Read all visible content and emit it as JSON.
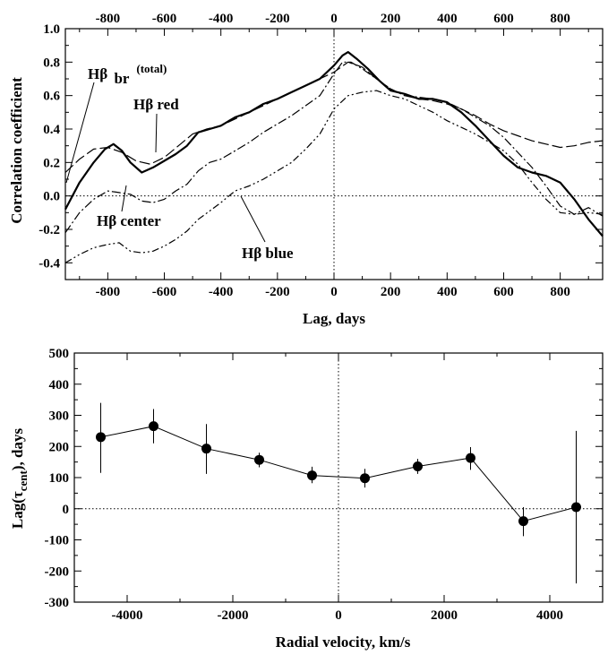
{
  "chart_data": [
    {
      "type": "line",
      "xlabel": "Lag, days",
      "ylabel": "Correlation coefficient",
      "xlim": [
        -950,
        950
      ],
      "ylim": [
        -0.5,
        1.0
      ],
      "xticks": [
        -800,
        -600,
        -400,
        -200,
        0,
        200,
        400,
        600,
        800
      ],
      "yticks": [
        -0.4,
        -0.2,
        0.0,
        0.2,
        0.4,
        0.6,
        0.8,
        1.0
      ],
      "xtick_labels": [
        "-800",
        "-600",
        "-400",
        "-200",
        "0",
        "200",
        "400",
        "600",
        "800"
      ],
      "ytick_labels": [
        "-0.4",
        "-0.2",
        "0.0",
        "0.2",
        "0.4",
        "0.6",
        "0.8",
        "1.0"
      ],
      "top_axis_ticks": true,
      "reference_lines": [
        "y=0",
        "x=0"
      ],
      "annotations": [
        {
          "text": "Hβ",
          "sub": "br",
          "sup": "(total)"
        },
        {
          "text": "Hβ red"
        },
        {
          "text": "Hβ center"
        },
        {
          "text": "Hβ blue"
        }
      ],
      "series": [
        {
          "name": "Hβ br (total)",
          "style": "solid-thick",
          "x": [
            -950,
            -900,
            -850,
            -810,
            -780,
            -750,
            -720,
            -680,
            -640,
            -600,
            -560,
            -520,
            -480,
            -440,
            -400,
            -350,
            -300,
            -250,
            -200,
            -150,
            -100,
            -50,
            0,
            30,
            50,
            80,
            120,
            160,
            200,
            250,
            300,
            350,
            400,
            450,
            500,
            550,
            600,
            650,
            700,
            750,
            800,
            850,
            900,
            950
          ],
          "y": [
            -0.08,
            0.08,
            0.2,
            0.28,
            0.31,
            0.27,
            0.2,
            0.14,
            0.17,
            0.21,
            0.25,
            0.3,
            0.38,
            0.4,
            0.42,
            0.47,
            0.5,
            0.55,
            0.58,
            0.62,
            0.66,
            0.7,
            0.78,
            0.84,
            0.86,
            0.82,
            0.76,
            0.69,
            0.63,
            0.61,
            0.58,
            0.58,
            0.56,
            0.5,
            0.42,
            0.33,
            0.24,
            0.17,
            0.14,
            0.12,
            0.08,
            -0.02,
            -0.14,
            -0.24
          ]
        },
        {
          "name": "Hβ red",
          "style": "long-dash",
          "x": [
            -950,
            -900,
            -850,
            -800,
            -750,
            -700,
            -650,
            -600,
            -550,
            -500,
            -450,
            -400,
            -350,
            -300,
            -250,
            -200,
            -150,
            -100,
            -50,
            0,
            50,
            100,
            150,
            200,
            250,
            300,
            350,
            400,
            450,
            500,
            550,
            600,
            650,
            700,
            750,
            800,
            850,
            900,
            950
          ],
          "y": [
            0.14,
            0.22,
            0.28,
            0.29,
            0.26,
            0.21,
            0.19,
            0.23,
            0.3,
            0.37,
            0.4,
            0.42,
            0.46,
            0.5,
            0.54,
            0.58,
            0.62,
            0.66,
            0.7,
            0.74,
            0.8,
            0.77,
            0.7,
            0.64,
            0.6,
            0.58,
            0.57,
            0.55,
            0.52,
            0.48,
            0.43,
            0.39,
            0.36,
            0.33,
            0.31,
            0.29,
            0.3,
            0.32,
            0.33
          ]
        },
        {
          "name": "Hβ center",
          "style": "dash-dot",
          "x": [
            -950,
            -900,
            -850,
            -800,
            -760,
            -720,
            -680,
            -640,
            -600,
            -560,
            -520,
            -480,
            -440,
            -400,
            -350,
            -300,
            -250,
            -200,
            -150,
            -100,
            -50,
            0,
            30,
            60,
            100,
            150,
            200,
            250,
            300,
            350,
            400,
            450,
            500,
            550,
            600,
            650,
            700,
            750,
            800,
            850,
            900,
            950
          ],
          "y": [
            -0.22,
            -0.1,
            -0.02,
            0.03,
            0.02,
            0.01,
            -0.03,
            -0.04,
            -0.02,
            0.03,
            0.07,
            0.15,
            0.2,
            0.22,
            0.27,
            0.32,
            0.38,
            0.43,
            0.48,
            0.54,
            0.6,
            0.73,
            0.8,
            0.8,
            0.76,
            0.7,
            0.64,
            0.6,
            0.59,
            0.58,
            0.56,
            0.52,
            0.47,
            0.42,
            0.35,
            0.26,
            0.17,
            0.06,
            -0.06,
            -0.11,
            -0.07,
            -0.12
          ]
        },
        {
          "name": "Hβ blue",
          "style": "dash-dot-dot",
          "x": [
            -950,
            -900,
            -850,
            -800,
            -760,
            -720,
            -680,
            -640,
            -600,
            -560,
            -520,
            -480,
            -440,
            -400,
            -350,
            -300,
            -250,
            -200,
            -150,
            -100,
            -50,
            0,
            50,
            100,
            150,
            200,
            250,
            300,
            350,
            400,
            450,
            500,
            550,
            600,
            650,
            700,
            750,
            800,
            850,
            900,
            950
          ],
          "y": [
            -0.4,
            -0.35,
            -0.31,
            -0.29,
            -0.28,
            -0.33,
            -0.34,
            -0.33,
            -0.3,
            -0.26,
            -0.21,
            -0.14,
            -0.09,
            -0.04,
            0.03,
            0.06,
            0.1,
            0.15,
            0.2,
            0.28,
            0.37,
            0.52,
            0.6,
            0.62,
            0.63,
            0.6,
            0.58,
            0.54,
            0.5,
            0.45,
            0.41,
            0.37,
            0.32,
            0.27,
            0.19,
            0.08,
            -0.02,
            -0.1,
            -0.11,
            -0.1,
            -0.11
          ]
        }
      ]
    },
    {
      "type": "scatter",
      "xlabel": "Radial velocity, km/s",
      "ylabel": "Lag(τ",
      "ylabel_sub": "cent",
      "ylabel_end": "), days",
      "xlim": [
        -5000,
        5000
      ],
      "ylim": [
        -300,
        500
      ],
      "xticks": [
        -4000,
        -2000,
        0,
        2000,
        4000
      ],
      "yticks": [
        -300,
        -200,
        -100,
        0,
        100,
        200,
        300,
        400,
        500
      ],
      "xtick_labels": [
        "-4000",
        "-2000",
        "0",
        "2000",
        "4000"
      ],
      "ytick_labels": [
        "-300",
        "-200",
        "-100",
        "0",
        "100",
        "200",
        "300",
        "400",
        "500"
      ],
      "reference_lines": [
        "y=0",
        "x=0"
      ],
      "connected": true,
      "points": [
        {
          "x": -4500,
          "y": 230,
          "err_low": 115,
          "err_high": 340
        },
        {
          "x": -3500,
          "y": 265,
          "err_low": 210,
          "err_high": 320
        },
        {
          "x": -2500,
          "y": 193,
          "err_low": 112,
          "err_high": 272
        },
        {
          "x": -1500,
          "y": 157,
          "err_low": 133,
          "err_high": 180
        },
        {
          "x": -500,
          "y": 107,
          "err_low": 82,
          "err_high": 135
        },
        {
          "x": 500,
          "y": 98,
          "err_low": 68,
          "err_high": 128
        },
        {
          "x": 1500,
          "y": 136,
          "err_low": 112,
          "err_high": 160
        },
        {
          "x": 2500,
          "y": 163,
          "err_low": 125,
          "err_high": 198
        },
        {
          "x": 3500,
          "y": -40,
          "err_low": -88,
          "err_high": 5
        },
        {
          "x": 4500,
          "y": 5,
          "err_low": -240,
          "err_high": 250
        }
      ]
    }
  ]
}
